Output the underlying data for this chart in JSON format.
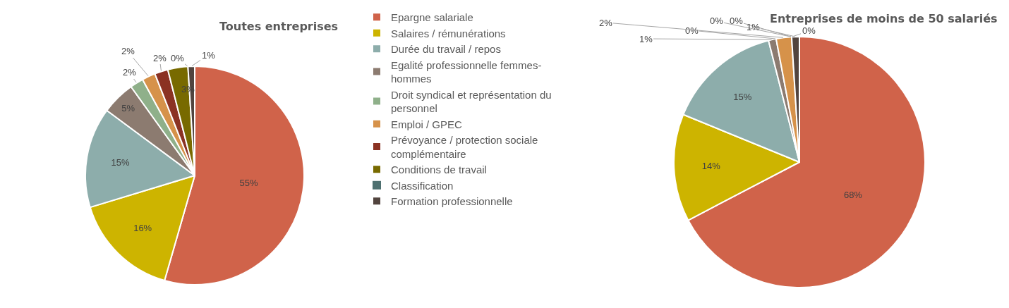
{
  "chart_data": [
    {
      "type": "pie",
      "title": "Toutes entreprises",
      "categories": [
        "Epargne salariale",
        "Salaires / rémunérations",
        "Durée du travail / repos",
        "Egalité professionnelle femmes-hommes",
        "Droit syndical et représentation du personnel",
        "Emploi / GPEC",
        "Prévoyance / protection sociale complémentaire",
        "Conditions de travail",
        "Classification",
        "Formation professionnelle"
      ],
      "values": [
        55,
        16,
        15,
        5,
        2,
        2,
        2,
        3,
        0,
        1
      ],
      "value_labels": [
        "55%",
        "16%",
        "15%",
        "5%",
        "2%",
        "2%",
        "2%",
        "3%",
        "0%",
        "1%"
      ],
      "colors": [
        "#d0634a",
        "#cdb400",
        "#8dadab",
        "#8c7b70",
        "#8fb08a",
        "#d6924a",
        "#8b3223",
        "#786a00",
        "#4e7070",
        "#52443e"
      ],
      "legend": "right"
    },
    {
      "type": "pie",
      "title": "Entreprises de moins de 50 salariés",
      "categories": [
        null,
        null,
        null,
        null,
        null,
        null,
        null,
        null,
        null,
        null
      ],
      "values": [
        68,
        14,
        15,
        1,
        0,
        2,
        0,
        0,
        0,
        1
      ],
      "value_labels": [
        "68%",
        "14%",
        "15%",
        "1%",
        "0%",
        "2%",
        "0%",
        "0%",
        "0%",
        "1%"
      ],
      "colors": [
        "#d0634a",
        "#cdb400",
        "#8dadab",
        "#8c7b70",
        "#8fb08a",
        "#d6924a",
        "#8b3223",
        "#786a00",
        "#4e7070",
        "#52443e"
      ]
    }
  ]
}
